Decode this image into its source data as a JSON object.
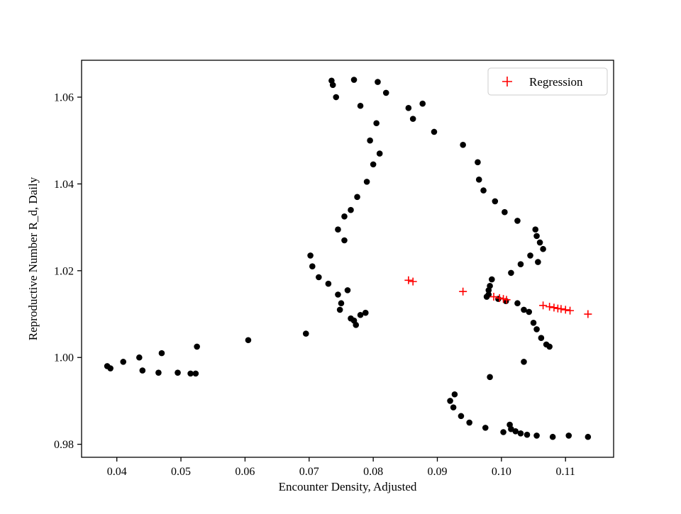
{
  "figure": {
    "background": "#ffffff",
    "frame_color": "#000000"
  },
  "chart_data": {
    "type": "scatter",
    "title": "",
    "xlabel": "Encounter Density, Adjusted",
    "ylabel": "Reproductive Number R_d, Daily",
    "xlim": [
      0.0345,
      0.1175
    ],
    "ylim": [
      0.977,
      1.0685
    ],
    "xticks": [
      0.04,
      0.05,
      0.06,
      0.07,
      0.08,
      0.09,
      0.1,
      0.11
    ],
    "yticks": [
      0.98,
      1.0,
      1.02,
      1.04,
      1.06
    ],
    "grid": false,
    "legend_position": "upper right",
    "series": [
      {
        "name": "Data",
        "marker": "circle",
        "color": "#000000",
        "show_in_legend": false,
        "points": [
          [
            0.0385,
            0.998
          ],
          [
            0.039,
            0.9975
          ],
          [
            0.041,
            0.999
          ],
          [
            0.0435,
            1.0
          ],
          [
            0.044,
            0.997
          ],
          [
            0.0465,
            0.9965
          ],
          [
            0.047,
            1.001
          ],
          [
            0.0495,
            0.9965
          ],
          [
            0.0515,
            0.9963
          ],
          [
            0.0523,
            0.9963
          ],
          [
            0.0525,
            1.0025
          ],
          [
            0.0605,
            1.004
          ],
          [
            0.0695,
            1.0055
          ],
          [
            0.0702,
            1.0235
          ],
          [
            0.0705,
            1.021
          ],
          [
            0.0715,
            1.0185
          ],
          [
            0.073,
            1.017
          ],
          [
            0.0745,
            1.0145
          ],
          [
            0.075,
            1.0125
          ],
          [
            0.076,
            1.0155
          ],
          [
            0.0748,
            1.011
          ],
          [
            0.0765,
            1.009
          ],
          [
            0.077,
            1.0085
          ],
          [
            0.0773,
            1.0075
          ],
          [
            0.078,
            1.0098
          ],
          [
            0.0788,
            1.0103
          ],
          [
            0.0755,
            1.027
          ],
          [
            0.0745,
            1.0295
          ],
          [
            0.0755,
            1.0325
          ],
          [
            0.0765,
            1.034
          ],
          [
            0.0775,
            1.037
          ],
          [
            0.079,
            1.0405
          ],
          [
            0.08,
            1.0445
          ],
          [
            0.081,
            1.047
          ],
          [
            0.0795,
            1.05
          ],
          [
            0.0805,
            1.054
          ],
          [
            0.0735,
            1.0638
          ],
          [
            0.0737,
            1.0628
          ],
          [
            0.0742,
            1.06
          ],
          [
            0.077,
            1.064
          ],
          [
            0.078,
            1.058
          ],
          [
            0.0807,
            1.0635
          ],
          [
            0.082,
            1.061
          ],
          [
            0.0855,
            1.0575
          ],
          [
            0.0862,
            1.055
          ],
          [
            0.0877,
            1.0585
          ],
          [
            0.0895,
            1.052
          ],
          [
            0.094,
            1.049
          ],
          [
            0.0963,
            1.045
          ],
          [
            0.0965,
            1.041
          ],
          [
            0.0972,
            1.0385
          ],
          [
            0.099,
            1.036
          ],
          [
            0.1005,
            1.0335
          ],
          [
            0.1025,
            1.0315
          ],
          [
            0.1053,
            1.0295
          ],
          [
            0.1055,
            1.028
          ],
          [
            0.106,
            1.0265
          ],
          [
            0.1065,
            1.025
          ],
          [
            0.1045,
            1.0235
          ],
          [
            0.1057,
            1.022
          ],
          [
            0.103,
            1.0215
          ],
          [
            0.1015,
            1.0195
          ],
          [
            0.0985,
            1.018
          ],
          [
            0.0982,
            1.0165
          ],
          [
            0.098,
            1.0155
          ],
          [
            0.098,
            1.0145
          ],
          [
            0.0977,
            1.014
          ],
          [
            0.0995,
            1.0135
          ],
          [
            0.1007,
            1.013
          ],
          [
            0.1025,
            1.0125
          ],
          [
            0.1035,
            1.011
          ],
          [
            0.1043,
            1.0105
          ],
          [
            0.105,
            1.008
          ],
          [
            0.1055,
            1.0065
          ],
          [
            0.1062,
            1.0045
          ],
          [
            0.107,
            1.003
          ],
          [
            0.1075,
            1.0025
          ],
          [
            0.1035,
            0.999
          ],
          [
            0.0982,
            0.9955
          ],
          [
            0.0927,
            0.9915
          ],
          [
            0.092,
            0.99
          ],
          [
            0.0925,
            0.9885
          ],
          [
            0.0937,
            0.9865
          ],
          [
            0.095,
            0.985
          ],
          [
            0.0975,
            0.9838
          ],
          [
            0.1003,
            0.9828
          ],
          [
            0.1013,
            0.9845
          ],
          [
            0.1015,
            0.9835
          ],
          [
            0.1022,
            0.983
          ],
          [
            0.103,
            0.9825
          ],
          [
            0.104,
            0.9822
          ],
          [
            0.1055,
            0.982
          ],
          [
            0.108,
            0.9817
          ],
          [
            0.1105,
            0.982
          ],
          [
            0.1135,
            0.9817
          ]
        ]
      },
      {
        "name": "Regression",
        "marker": "plus",
        "color": "#ff0000",
        "show_in_legend": true,
        "points": [
          [
            0.0855,
            1.0178
          ],
          [
            0.0862,
            1.0175
          ],
          [
            0.094,
            1.0152
          ],
          [
            0.0988,
            1.014
          ],
          [
            0.0997,
            1.0137
          ],
          [
            0.1003,
            1.0135
          ],
          [
            0.1008,
            1.0133
          ],
          [
            0.1065,
            1.012
          ],
          [
            0.1075,
            1.0117
          ],
          [
            0.1082,
            1.0115
          ],
          [
            0.1088,
            1.0113
          ],
          [
            0.1093,
            1.0112
          ],
          [
            0.11,
            1.011
          ],
          [
            0.1107,
            1.0108
          ],
          [
            0.1135,
            1.01
          ]
        ]
      }
    ]
  }
}
